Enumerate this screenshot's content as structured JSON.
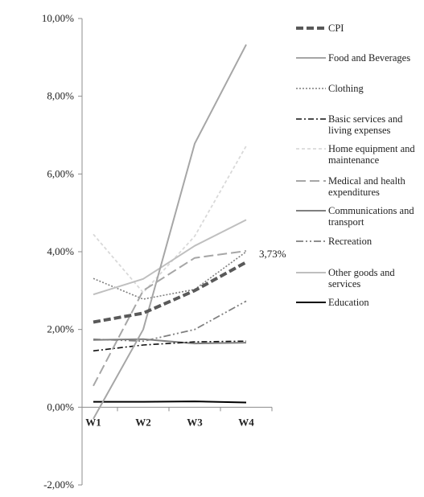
{
  "chart_data": {
    "type": "line",
    "categories": [
      "W1",
      "W2",
      "W3",
      "W4"
    ],
    "ylim": [
      -2,
      10
    ],
    "yticks": [
      -2,
      0,
      2,
      4,
      6,
      8,
      10
    ],
    "ytick_labels": [
      "-2,00%",
      "0,00%",
      "2,00%",
      "4,00%",
      "6,00%",
      "8,00%",
      "10,00%"
    ],
    "grid": false,
    "legend": "right",
    "annotation": {
      "series": "CPI",
      "label": "3,73%"
    },
    "series": [
      {
        "name": "CPI",
        "lines": [
          "CPI"
        ],
        "values": [
          2.19,
          2.42,
          3.0,
          3.73
        ],
        "color": "#595959",
        "style": "dash-bold"
      },
      {
        "name": "Food and Beverages",
        "lines": [
          "Food and Beverages"
        ],
        "values": [
          -0.3,
          2.0,
          6.78,
          9.33
        ],
        "color": "#a6a6a6",
        "style": "solid"
      },
      {
        "name": "Clothing",
        "lines": [
          "Clothing"
        ],
        "values": [
          3.31,
          2.78,
          3.03,
          4.0
        ],
        "color": "#7f7f7f",
        "style": "dot"
      },
      {
        "name": "Basic services and living expenses",
        "lines": [
          "Basic services and",
          "living expenses"
        ],
        "values": [
          1.45,
          1.6,
          1.68,
          1.7
        ],
        "color": "#111111",
        "style": "dashdot"
      },
      {
        "name": "Home equipment and maintenance",
        "lines": [
          "Home equipment and",
          "maintenance"
        ],
        "values": [
          4.45,
          2.95,
          4.4,
          6.72
        ],
        "color": "#d9d9d9",
        "style": "short-dash"
      },
      {
        "name": "Medical and health expenditures",
        "lines": [
          "Medical and health",
          "expenditures"
        ],
        "values": [
          0.55,
          3.0,
          3.84,
          4.02
        ],
        "color": "#a6a6a6",
        "style": "long-dash"
      },
      {
        "name": "Communications and transport",
        "lines": [
          "Communications and",
          "transport"
        ],
        "values": [
          1.73,
          1.75,
          1.64,
          1.66
        ],
        "color": "#7f7f7f",
        "style": "solid"
      },
      {
        "name": "Recreation",
        "lines": [
          "Recreation"
        ],
        "values": [
          1.75,
          1.7,
          2.0,
          2.73
        ],
        "color": "#7f7f7f",
        "style": "dashdotdot"
      },
      {
        "name": "Other goods and services",
        "lines": [
          "Other goods and",
          "services"
        ],
        "values": [
          2.9,
          3.3,
          4.15,
          4.82
        ],
        "color": "#bfbfbf",
        "style": "solid"
      },
      {
        "name": "Education",
        "lines": [
          "Education"
        ],
        "values": [
          0.14,
          0.14,
          0.15,
          0.12
        ],
        "color": "#000000",
        "style": "solid"
      }
    ]
  }
}
